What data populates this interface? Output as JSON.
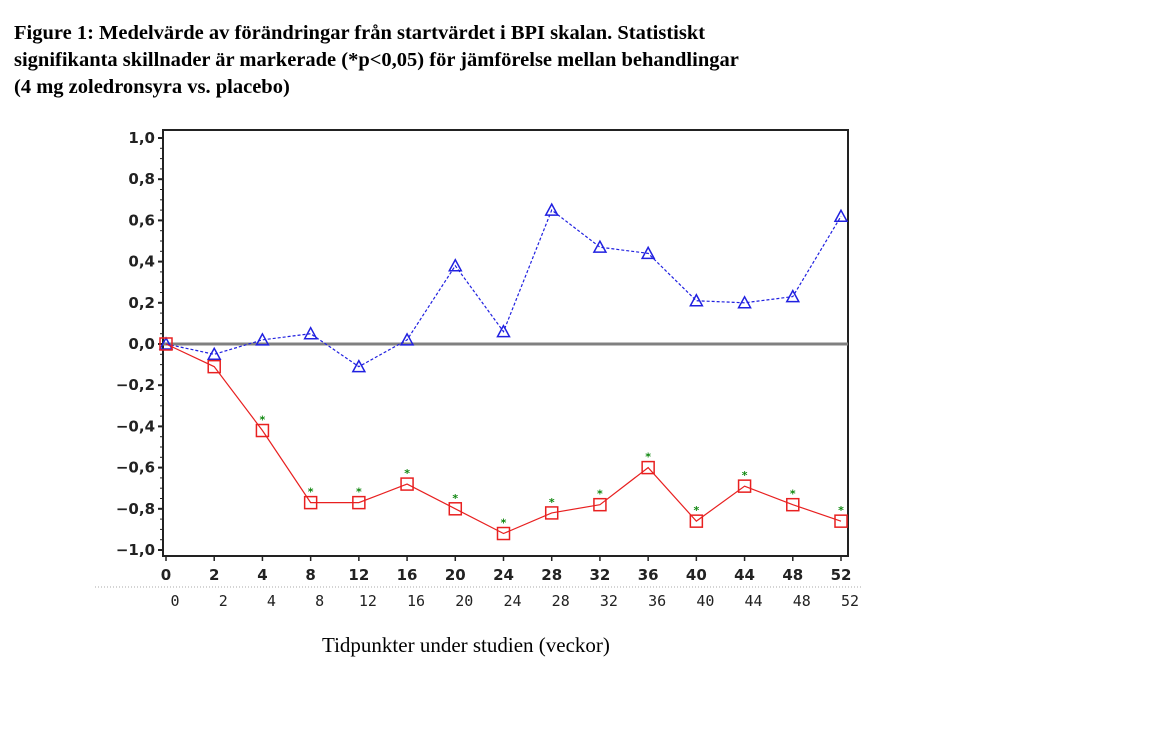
{
  "title_lines": [
    "Figure 1: Medelvärde av förändringar från startvärdet i BPI skalan. Statistiskt",
    "signifikanta skillnader är markerade (*p<0,05) för jämförelse mellan behandlingar",
    "(4 mg zoledronsyra vs. placebo)"
  ],
  "chart_data": {
    "type": "line",
    "title": "Figure 1: Medelvärde av förändringar från startvärdet i BPI skalan. Statistiskt signifikanta skillnader är markerade (*p<0,05) för jämförelse mellan behandlingar (4 mg zoledronsyra vs. placebo)",
    "xlabel": "Tidpunkter under studien (veckor)",
    "ylabel": "",
    "categories": [
      "0",
      "2",
      "4",
      "8",
      "12",
      "16",
      "20",
      "24",
      "28",
      "32",
      "36",
      "40",
      "44",
      "48",
      "52"
    ],
    "yticks": [
      "1,0",
      "0,8",
      "0,6",
      "0,4",
      "0,2",
      "0,0",
      "−0,2",
      "−0,4",
      "−0,6",
      "−0,8",
      "−1,0"
    ],
    "ytick_values": [
      1.0,
      0.8,
      0.6,
      0.4,
      0.2,
      0.0,
      -0.2,
      -0.4,
      -0.6,
      -0.8,
      -1.0
    ],
    "ylim": [
      -1.0,
      1.0
    ],
    "reference_line": 0.0,
    "grid": false,
    "series": [
      {
        "marker": "triangle",
        "color": "#2020e0",
        "dash": "dashed",
        "values": [
          0.0,
          -0.05,
          0.02,
          0.05,
          -0.11,
          0.02,
          0.38,
          0.06,
          0.65,
          0.47,
          0.44,
          0.21,
          0.2,
          0.23,
          0.62
        ]
      },
      {
        "marker": "square",
        "color": "#e82020",
        "dash": "solid",
        "values": [
          0.0,
          -0.11,
          -0.42,
          -0.77,
          -0.77,
          -0.68,
          -0.8,
          -0.92,
          -0.82,
          -0.78,
          -0.6,
          -0.86,
          -0.69,
          -0.78,
          -0.86
        ],
        "significant": [
          false,
          false,
          true,
          true,
          true,
          true,
          true,
          true,
          true,
          true,
          true,
          true,
          true,
          true,
          true
        ],
        "significance_color": "#118811"
      }
    ]
  }
}
